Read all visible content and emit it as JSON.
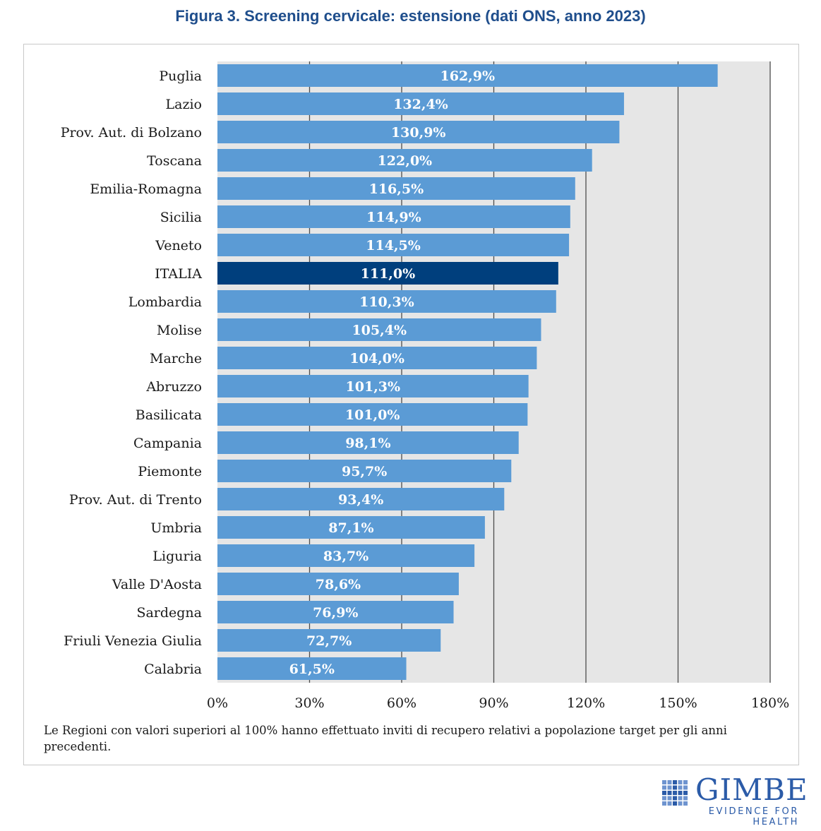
{
  "title": "Figura 3. Screening cervicale: estensione (dati ONS, anno 2023)",
  "note": "Le Regioni con valori superiori al 100% hanno effettuato inviti di recupero relativi a popolazione target per gli anni precedenti.",
  "logo": {
    "word": "GIMBE",
    "tagline": "EVIDENCE FOR HEALTH",
    "mark": "gimbe-grid-logo"
  },
  "colors": {
    "bar": "#5b9bd5",
    "highlight": "#003f7d",
    "plot_bg": "#e6e6e6",
    "grid": "#4d4d4d"
  },
  "chart_data": {
    "type": "bar",
    "orientation": "horizontal",
    "title": "Figura 3. Screening cervicale: estensione (dati ONS, anno 2023)",
    "xlabel": "",
    "ylabel": "",
    "xlim": [
      0,
      180
    ],
    "x_ticks": [
      "0%",
      "30%",
      "60%",
      "90%",
      "120%",
      "150%",
      "180%"
    ],
    "grid": true,
    "categories": [
      "Puglia",
      "Lazio",
      "Prov. Aut. di Bolzano",
      "Toscana",
      "Emilia-Romagna",
      "Sicilia",
      "Veneto",
      "ITALIA",
      "Lombardia",
      "Molise",
      "Marche",
      "Abruzzo",
      "Basilicata",
      "Campania",
      "Piemonte",
      "Prov. Aut. di Trento",
      "Umbria",
      "Liguria",
      "Valle D'Aosta",
      "Sardegna",
      "Friuli Venezia Giulia",
      "Calabria"
    ],
    "values": [
      162.9,
      132.4,
      130.9,
      122.0,
      116.5,
      114.9,
      114.5,
      111.0,
      110.3,
      105.4,
      104.0,
      101.3,
      101.0,
      98.1,
      95.7,
      93.4,
      87.1,
      83.7,
      78.6,
      76.9,
      72.7,
      61.5
    ],
    "value_labels": [
      "162,9%",
      "132,4%",
      "130,9%",
      "122,0%",
      "116,5%",
      "114,9%",
      "114,5%",
      "111,0%",
      "110,3%",
      "105,4%",
      "104,0%",
      "101,3%",
      "101,0%",
      "98,1%",
      "95,7%",
      "93,4%",
      "87,1%",
      "83,7%",
      "78,6%",
      "76,9%",
      "72,7%",
      "61,5%"
    ],
    "highlight": "ITALIA"
  }
}
